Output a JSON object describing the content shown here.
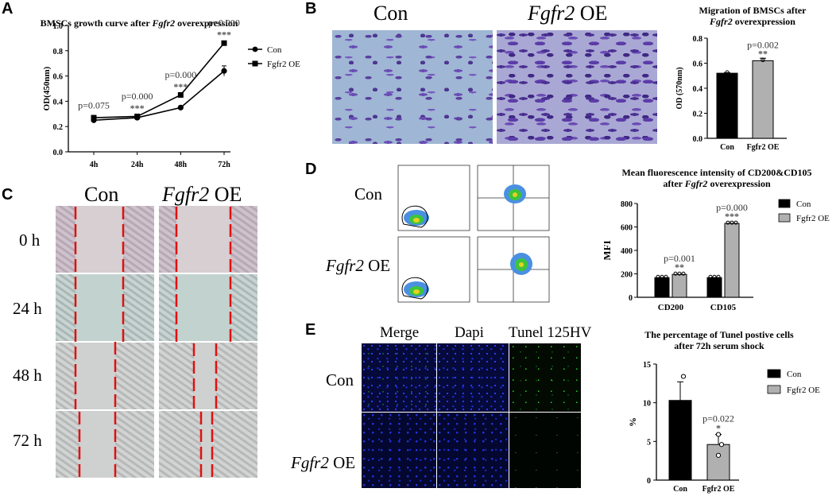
{
  "panels": {
    "A": {
      "letter": "A",
      "title_pre": "BMSCs growth curve after ",
      "title_gene": "Fgfr2",
      "title_post": " overexpression"
    },
    "B": {
      "letter": "B",
      "img_label_con": "Con",
      "img_label_oe_gene": "Fgfr2",
      "img_label_oe_suffix": " OE",
      "title_line1": "Migration of BMSCs after",
      "title_gene": "Fgfr2",
      "title_line2_post": " overexpression"
    },
    "C": {
      "letter": "C",
      "label_con": "Con",
      "label_oe_gene": "Fgfr2",
      "label_oe_suffix": " OE",
      "rows": [
        "0 h",
        "24 h",
        "48 h",
        "72 h"
      ]
    },
    "D": {
      "letter": "D",
      "label_con": "Con",
      "label_oe_gene": "Fgfr2",
      "label_oe_suffix": " OE",
      "title_line1": "Mean fluorescence intensity of CD200&CD105",
      "title_line2_pre": "after ",
      "title_gene": "Fgfr2",
      "title_line2_post": " overexpression"
    },
    "E": {
      "letter": "E",
      "col_merge": "Merge",
      "col_dapi": "Dapi",
      "col_tunel": "Tunel 125HV",
      "row_con": "Con",
      "row_oe_gene": "Fgfr2",
      "row_oe_suffix": " OE",
      "title_line1": "The percentage of Tunel postive cells",
      "title_line2": "after 72h serum shock"
    }
  },
  "chart_data": [
    {
      "id": "A",
      "type": "line",
      "ylabel": "OD(450nm)",
      "xlabel": "",
      "categories": [
        "4h",
        "24h",
        "48h",
        "72h"
      ],
      "ylim": [
        0.0,
        1.0
      ],
      "yticks": [
        "0.0",
        "0.2",
        "0.4",
        "0.6",
        "0.8",
        "1.0"
      ],
      "legend": [
        "Con",
        "Fgfr2 OE"
      ],
      "series": [
        {
          "name": "Con",
          "marker": "circle",
          "values": [
            0.25,
            0.27,
            0.35,
            0.64
          ],
          "err": [
            0.01,
            0.01,
            0.01,
            0.04
          ]
        },
        {
          "name": "Fgfr2 OE",
          "marker": "square",
          "values": [
            0.27,
            0.28,
            0.45,
            0.86
          ],
          "err": [
            0.01,
            0.01,
            0.01,
            0.01
          ]
        }
      ],
      "annotations": [
        {
          "x": "4h",
          "p": "p=0.075",
          "stars": ""
        },
        {
          "x": "24h",
          "p": "p=0.000",
          "stars": "***"
        },
        {
          "x": "48h",
          "p": "p=0.000",
          "stars": "***"
        },
        {
          "x": "72h",
          "p": "p=0.000",
          "stars": "***"
        }
      ]
    },
    {
      "id": "B",
      "type": "bar",
      "ylabel": "OD (570nm)",
      "categories": [
        "Con",
        "Fgfr2 OE"
      ],
      "values": [
        0.52,
        0.62
      ],
      "err": [
        0.005,
        0.02
      ],
      "colors": [
        "#000000",
        "#b0b0b0"
      ],
      "ylim": [
        0.0,
        0.8
      ],
      "yticks": [
        "0.0",
        "0.2",
        "0.4",
        "0.6",
        "0.8"
      ],
      "annotation": {
        "p": "p=0.002",
        "stars": "**"
      }
    },
    {
      "id": "D",
      "type": "bar",
      "ylabel": "MFI",
      "categories": [
        "CD200",
        "CD105"
      ],
      "series": [
        {
          "name": "Con",
          "color": "#000000",
          "values": [
            168,
            168
          ]
        },
        {
          "name": "Fgfr2 OE",
          "color": "#b0b0b0",
          "values": [
            195,
            630
          ]
        }
      ],
      "ylim": [
        0,
        800
      ],
      "yticks": [
        "0",
        "200",
        "400",
        "600",
        "800"
      ],
      "legend": [
        "Con",
        "Fgfr2 OE"
      ],
      "annotations": [
        {
          "category": "CD200",
          "p": "p=0.001",
          "stars": "**"
        },
        {
          "category": "CD105",
          "p": "p=0.000",
          "stars": "***"
        }
      ]
    },
    {
      "id": "E",
      "type": "bar",
      "ylabel": "%",
      "categories": [
        "Con",
        "Fgfr2 OE"
      ],
      "values": [
        10.3,
        4.6
      ],
      "err": [
        2.4,
        1.3
      ],
      "colors": [
        "#000000",
        "#b0b0b0"
      ],
      "ylim": [
        0,
        15
      ],
      "yticks": [
        "0",
        "5",
        "10",
        "15"
      ],
      "legend": [
        "Con",
        "Fgfr2 OE"
      ],
      "annotation": {
        "p": "p=0.022",
        "stars": "*"
      }
    }
  ],
  "colors": {
    "con_bar": "#000000",
    "oe_bar": "#b0b0b0",
    "scratch_line": "#e01010"
  }
}
